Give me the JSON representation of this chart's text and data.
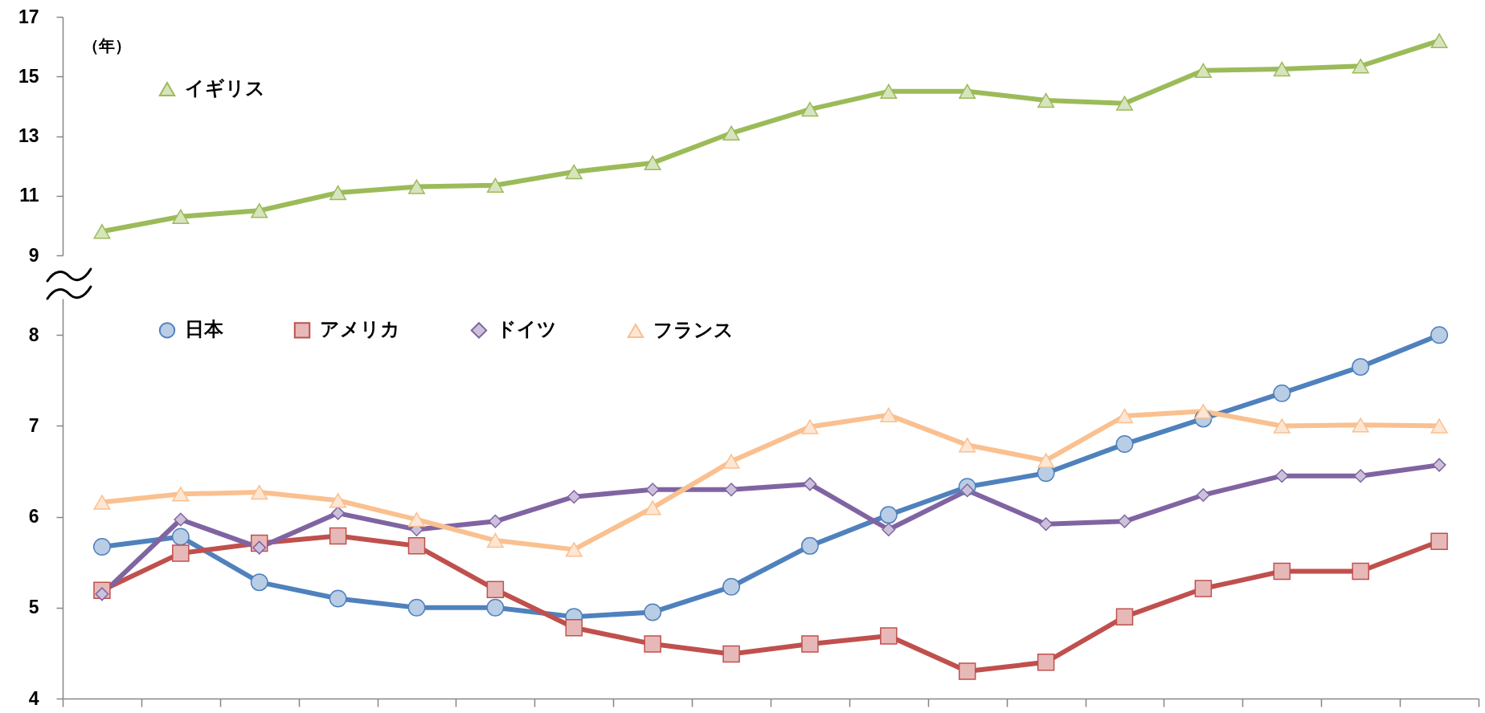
{
  "chart_data": [
    {
      "type": "line",
      "ylabel": "（年）",
      "categories": [
        null,
        null,
        null,
        null,
        null,
        null,
        null,
        null,
        null,
        null,
        null,
        null,
        null,
        null,
        null,
        null,
        null,
        null
      ],
      "series": [
        {
          "name": "イギリス",
          "color": "#9bbb59",
          "marker": "triangle",
          "values": [
            9.8,
            10.3,
            10.5,
            11.1,
            11.3,
            11.35,
            11.8,
            12.1,
            13.1,
            13.9,
            14.5,
            14.5,
            14.2,
            14.1,
            15.2,
            15.25,
            15.35,
            16.2
          ]
        }
      ],
      "ylim": [
        9,
        17
      ],
      "yticks": [
        9,
        11,
        13,
        15,
        17
      ],
      "legend": "top left",
      "tick_labels": "y"
    },
    {
      "type": "line",
      "categories": [
        null,
        null,
        null,
        null,
        null,
        null,
        null,
        null,
        null,
        null,
        null,
        null,
        null,
        null,
        null,
        null,
        null,
        null
      ],
      "series": [
        {
          "name": "日本",
          "color": "#4f81bd",
          "marker": "circle",
          "values": [
            5.67,
            5.78,
            5.28,
            5.1,
            5.0,
            5.0,
            4.9,
            4.95,
            5.23,
            5.68,
            6.02,
            6.33,
            6.48,
            6.8,
            7.08,
            7.36,
            7.65,
            8.0
          ]
        },
        {
          "name": "アメリカ",
          "color": "#c0504d",
          "marker": "square",
          "values": [
            5.19,
            5.6,
            5.71,
            5.79,
            5.68,
            5.2,
            4.78,
            4.6,
            4.49,
            4.6,
            4.69,
            4.3,
            4.4,
            4.9,
            5.21,
            5.4,
            5.4,
            5.73
          ]
        },
        {
          "name": "ドイツ",
          "color": "#8064a2",
          "marker": "diamond",
          "values": [
            5.15,
            5.97,
            5.66,
            6.04,
            5.86,
            5.95,
            6.22,
            6.3,
            6.3,
            6.36,
            5.86,
            6.29,
            5.92,
            5.95,
            6.24,
            6.45,
            6.45,
            6.57
          ]
        },
        {
          "name": "フランス",
          "color": "#fac090",
          "marker": "triangle",
          "values": [
            6.16,
            6.25,
            6.27,
            6.18,
            5.97,
            5.74,
            5.64,
            6.1,
            6.61,
            6.99,
            7.12,
            6.79,
            6.62,
            7.11,
            7.16,
            7.0,
            7.01,
            7.0
          ]
        }
      ],
      "ylim": [
        4,
        8.4
      ],
      "yticks": [
        4,
        5,
        6,
        7,
        8
      ],
      "legend": "top left",
      "tick_labels": "y"
    }
  ]
}
